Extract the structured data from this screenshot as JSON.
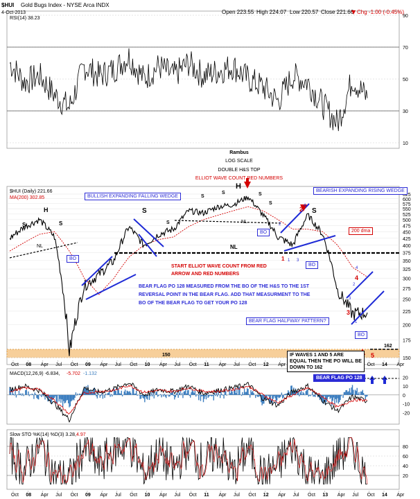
{
  "header": {
    "symbol": "$HUI",
    "name": "Gold Bugs Index - NYSE Arca INDX",
    "date": "4-Oct-2013",
    "open": "Open 223.55",
    "high": "High 224.07",
    "low": "Low 220.57",
    "close": "Close 221.66",
    "change": "Chg -1.00 (-0.45%)",
    "change_color": "#d40000",
    "arrow": "▼"
  },
  "rsi_panel": {
    "label": "RSI(14) 38.23",
    "right_labels": [
      "90",
      "70",
      "50",
      "30",
      "10"
    ],
    "overbought": 70,
    "oversold": 30
  },
  "main_panel": {
    "label": "$HUI (Daily) 221.66",
    "ma_label": "MA(200) 302.85",
    "log_scale": true,
    "price_axis": [
      "625",
      "600",
      "575",
      "550",
      "525",
      "500",
      "475",
      "450",
      "425",
      "400",
      "375",
      "350",
      "325",
      "300",
      "275",
      "250",
      "225",
      "200",
      "175",
      "150"
    ],
    "price_axis_right_low": "150",
    "neckline_level": 380,
    "support_level": 150,
    "support_label": "150",
    "target_label": "162"
  },
  "annotations": {
    "title1": "Rambus",
    "title2": "LOG SCALE",
    "title3": "DOUBLE H&S TOP",
    "title4": "ELLIOT WAVE COUNT RED NUMBERS",
    "wedge1": "BULLISH EXPANDING FALLING WEDGE",
    "wedge2": "BEARISH EXPANDING RISING WEDGE",
    "dma": "200 dma",
    "elliot_start": "START ELLIOT WAVE COUNT FROM RED ARROW AND RED NUMBERS",
    "bear_flag_po": "BEAR FLAG PO 128 MEASURED FROM THE BO OF THE H&S TO THE 1ST REVERSAL POINT IN THE BEAR FLAG. ADD THAT MEASURMENT TO THE BO OF THE BEAR FLAG TO GET YOUR PO 128",
    "halfway": "BEAR FLAG HALFWAY PATTERN?",
    "waves_note": "IF WAVES 1 AND 5 ARE EQUAL THEN THE PO WILL BE DOWN TO 162",
    "macd_po": "BEAR FLAG PO 128",
    "bo": "BO",
    "nl": "NL",
    "s": "S",
    "h": "H",
    "w1": "1",
    "w2": "2",
    "w3": "3",
    "w4": "4",
    "w5": "5",
    "sub1": "1",
    "sub2": "2",
    "sub3": "3",
    "sub4": "4"
  },
  "macd_panel": {
    "label": "MACD(12,26,9) -6.834,",
    "signal": "-5.702",
    "hist": "-1.132",
    "right_labels": [
      "20",
      "10",
      "0",
      "-10",
      "-20"
    ]
  },
  "sto_panel": {
    "label": "Slow STO %K(14) %D(3) 3.28,",
    "d_value": "4.97",
    "right_labels": [
      "80",
      "60",
      "40",
      "20"
    ]
  },
  "x_axis": {
    "labels": [
      "Oct",
      "08",
      "Apr",
      "Jul",
      "Oct",
      "09",
      "Apr",
      "Jul",
      "Oct",
      "10",
      "Apr",
      "Jul",
      "Oct",
      "11",
      "Apr",
      "Jul",
      "Oct",
      "12",
      "Apr",
      "Jul",
      "Oct",
      "13",
      "Apr",
      "Jul",
      "Oct",
      "14",
      "Apr"
    ]
  },
  "colors": {
    "price": "#000000",
    "ma": "#d40000",
    "trend": "#1f2bd6",
    "neck": "#000000",
    "support_band": "#f7cf9a",
    "annotation_red": "#d40000",
    "annotation_blue": "#2b2bd6",
    "macd_line": "#000000",
    "macd_signal": "#d40000",
    "macd_hist": "#3b7dbf",
    "sto_k": "#000000",
    "sto_d": "#d40000"
  },
  "chart_data": [
    {
      "type": "line",
      "title": "RSI(14) 38.23",
      "ylim": [
        10,
        90
      ],
      "x": [
        "2007-10",
        "2008-01",
        "2008-04",
        "2008-07",
        "2008-10",
        "2009-01",
        "2009-04",
        "2009-07",
        "2009-10",
        "2010-01",
        "2010-04",
        "2010-07",
        "2010-10",
        "2011-01",
        "2011-04",
        "2011-07",
        "2011-10",
        "2012-01",
        "2012-04",
        "2012-07",
        "2012-10",
        "2013-01",
        "2013-04",
        "2013-07",
        "2013-10"
      ],
      "series": [
        {
          "values": [
            60,
            48,
            52,
            40,
            32,
            58,
            52,
            56,
            64,
            50,
            58,
            52,
            60,
            52,
            55,
            58,
            50,
            45,
            36,
            52,
            48,
            34,
            22,
            50,
            38
          ]
        }
      ]
    },
    {
      "type": "line",
      "title": "$HUI (Daily) 221.66",
      "ylabel": "",
      "log_scale": true,
      "ylim": [
        150,
        625
      ],
      "x": [
        "2007-10",
        "2008-01",
        "2008-04",
        "2008-07",
        "2008-10",
        "2009-01",
        "2009-04",
        "2009-07",
        "2009-10",
        "2010-01",
        "2010-04",
        "2010-07",
        "2010-10",
        "2011-01",
        "2011-04",
        "2011-07",
        "2011-10",
        "2012-01",
        "2012-04",
        "2012-07",
        "2012-10",
        "2013-01",
        "2013-04",
        "2013-07",
        "2013-10"
      ],
      "series": [
        {
          "name": "$HUI (Daily)",
          "values": [
            425,
            470,
            500,
            430,
            155,
            280,
            310,
            350,
            470,
            400,
            440,
            460,
            540,
            530,
            560,
            570,
            610,
            520,
            430,
            400,
            520,
            440,
            270,
            220,
            222
          ]
        },
        {
          "name": "MA(200)",
          "values": [
            380,
            410,
            440,
            450,
            380,
            300,
            260,
            300,
            360,
            400,
            420,
            430,
            470,
            500,
            520,
            540,
            560,
            540,
            500,
            460,
            460,
            450,
            400,
            330,
            303
          ]
        }
      ]
    },
    {
      "type": "line",
      "title": "MACD(12,26,9) -6.834, -5.702 -1.132",
      "ylim": [
        -30,
        25
      ],
      "x": [
        "2007-10",
        "2008-01",
        "2008-04",
        "2008-07",
        "2008-10",
        "2009-01",
        "2009-04",
        "2009-07",
        "2009-10",
        "2010-01",
        "2010-04",
        "2010-07",
        "2010-10",
        "2011-01",
        "2011-04",
        "2011-07",
        "2011-10",
        "2012-01",
        "2012-04",
        "2012-07",
        "2012-10",
        "2013-01",
        "2013-04",
        "2013-07",
        "2013-10"
      ],
      "series": [
        {
          "name": "MACD",
          "values": [
            6,
            10,
            5,
            -10,
            -28,
            8,
            3,
            7,
            14,
            0,
            6,
            4,
            10,
            2,
            5,
            8,
            12,
            -4,
            -12,
            4,
            10,
            -6,
            -18,
            -2,
            -7
          ]
        },
        {
          "name": "Signal",
          "values": [
            4,
            8,
            6,
            -6,
            -22,
            2,
            4,
            5,
            11,
            3,
            5,
            4,
            8,
            4,
            4,
            6,
            10,
            0,
            -9,
            0,
            8,
            -2,
            -14,
            -6,
            -6
          ]
        }
      ]
    },
    {
      "type": "line",
      "title": "Slow STO %K(14) %D(3) 3.28, 4.97",
      "ylim": [
        0,
        100
      ],
      "x": [
        "2007-10",
        "2008-01",
        "2008-04",
        "2008-07",
        "2008-10",
        "2009-01",
        "2009-04",
        "2009-07",
        "2009-10",
        "2010-01",
        "2010-04",
        "2010-07",
        "2010-10",
        "2011-01",
        "2011-04",
        "2011-07",
        "2011-10",
        "2012-01",
        "2012-04",
        "2012-07",
        "2012-10",
        "2013-01",
        "2013-04",
        "2013-07",
        "2013-10"
      ],
      "series": [
        {
          "name": "%K",
          "values": [
            70,
            30,
            85,
            20,
            10,
            80,
            40,
            75,
            90,
            20,
            70,
            30,
            85,
            40,
            75,
            20,
            80,
            15,
            40,
            85,
            25,
            10,
            60,
            85,
            3
          ]
        },
        {
          "name": "%D",
          "values": [
            65,
            35,
            80,
            25,
            15,
            75,
            45,
            70,
            85,
            25,
            65,
            35,
            80,
            45,
            70,
            25,
            75,
            20,
            45,
            80,
            30,
            15,
            55,
            80,
            5
          ]
        }
      ]
    }
  ]
}
